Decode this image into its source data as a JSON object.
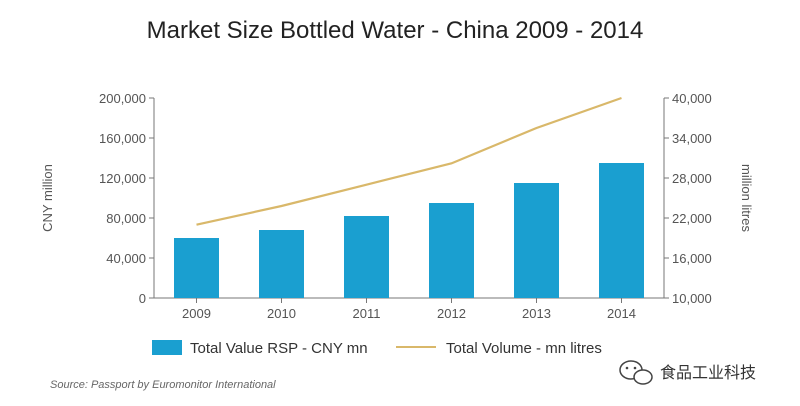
{
  "chart_data": {
    "type": "bar",
    "title": "Market Size Bottled Water - China 2009 - 2014",
    "categories": [
      "2009",
      "2010",
      "2011",
      "2012",
      "2013",
      "2014"
    ],
    "series": [
      {
        "name": "Total Value RSP - CNY mn",
        "type": "bar",
        "axis": "left",
        "color": "#1a9fd0",
        "values": [
          60000,
          68000,
          82000,
          95000,
          115000,
          135000
        ]
      },
      {
        "name": "Total Volume - mn litres",
        "type": "line",
        "axis": "right",
        "color": "#d9b86a",
        "values": [
          21000,
          23800,
          27000,
          30200,
          35500,
          40000
        ]
      }
    ],
    "ylabel": "CNY million",
    "y2label": "million litres",
    "ylim": [
      0,
      200000
    ],
    "y2lim": [
      10000,
      40000
    ],
    "yticks": [
      "0",
      "40,000",
      "80,000",
      "120,000",
      "160,000",
      "200,000"
    ],
    "y2ticks": [
      "10,000",
      "16,000",
      "22,000",
      "28,000",
      "34,000",
      "40,000"
    ],
    "legend_position": "bottom",
    "source": "Source: Passport by Euromonitor International"
  },
  "watermark": {
    "text": "食品工业科技",
    "icon": "wechat-icon"
  }
}
